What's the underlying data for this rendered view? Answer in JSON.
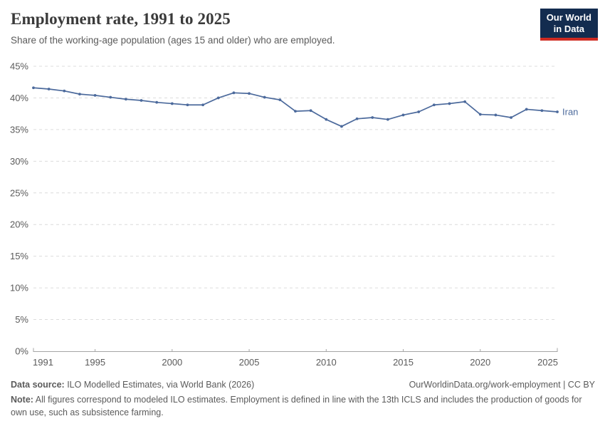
{
  "header": {
    "title": "Employment rate, 1991 to 2025",
    "subtitle": "Share of the working-age population (ages 15 and older) who are employed.",
    "logo": {
      "line1": "Our World",
      "line2": "in Data"
    }
  },
  "chart_data": {
    "type": "line",
    "title": "Employment rate, 1991 to 2025",
    "xlabel": "",
    "ylabel": "",
    "xlim": [
      1991,
      2025
    ],
    "ylim": [
      0,
      45
    ],
    "grid": "horizontal-dashed",
    "legend": "end-of-line-label",
    "colors": {
      "line": "#4c6a9c",
      "grid": "#dcdcdc",
      "axis": "#a5a5a5",
      "tick_text": "#5b5b5b"
    },
    "y_ticks": [
      {
        "value": 0,
        "label": "0%"
      },
      {
        "value": 5,
        "label": "5%"
      },
      {
        "value": 10,
        "label": "10%"
      },
      {
        "value": 15,
        "label": "15%"
      },
      {
        "value": 20,
        "label": "20%"
      },
      {
        "value": 25,
        "label": "25%"
      },
      {
        "value": 30,
        "label": "30%"
      },
      {
        "value": 35,
        "label": "35%"
      },
      {
        "value": 40,
        "label": "40%"
      },
      {
        "value": 45,
        "label": "45%"
      }
    ],
    "x_ticks": [
      {
        "value": 1991,
        "label": "1991"
      },
      {
        "value": 1995,
        "label": "1995"
      },
      {
        "value": 2000,
        "label": "2000"
      },
      {
        "value": 2005,
        "label": "2005"
      },
      {
        "value": 2010,
        "label": "2010"
      },
      {
        "value": 2015,
        "label": "2015"
      },
      {
        "value": 2020,
        "label": "2020"
      },
      {
        "value": 2025,
        "label": "2025"
      }
    ],
    "x": [
      1991,
      1992,
      1993,
      1994,
      1995,
      1996,
      1997,
      1998,
      1999,
      2000,
      2001,
      2002,
      2003,
      2004,
      2005,
      2006,
      2007,
      2008,
      2009,
      2010,
      2011,
      2012,
      2013,
      2014,
      2015,
      2016,
      2017,
      2018,
      2019,
      2020,
      2021,
      2022,
      2023,
      2024,
      2025
    ],
    "series": [
      {
        "name": "Iran",
        "color": "#4c6a9c",
        "values": [
          41.6,
          41.4,
          41.1,
          40.6,
          40.4,
          40.1,
          39.8,
          39.6,
          39.3,
          39.1,
          38.9,
          38.9,
          40.0,
          40.8,
          40.7,
          40.1,
          39.7,
          37.9,
          38.0,
          36.6,
          35.5,
          36.7,
          36.9,
          36.6,
          37.3,
          37.8,
          38.9,
          39.1,
          39.4,
          37.4,
          37.3,
          36.9,
          38.2,
          38.0,
          37.8
        ]
      }
    ]
  },
  "footer": {
    "datasource_label": "Data source:",
    "datasource_text": " ILO Modelled Estimates, via World Bank (2026)",
    "link": "OurWorldinData.org/work-employment | CC BY",
    "note_label": "Note:",
    "note_text": " All figures correspond to modeled ILO estimates. Employment is defined in line with the 13th ICLS and includes the production of goods for own use, such as subsistence farming."
  }
}
